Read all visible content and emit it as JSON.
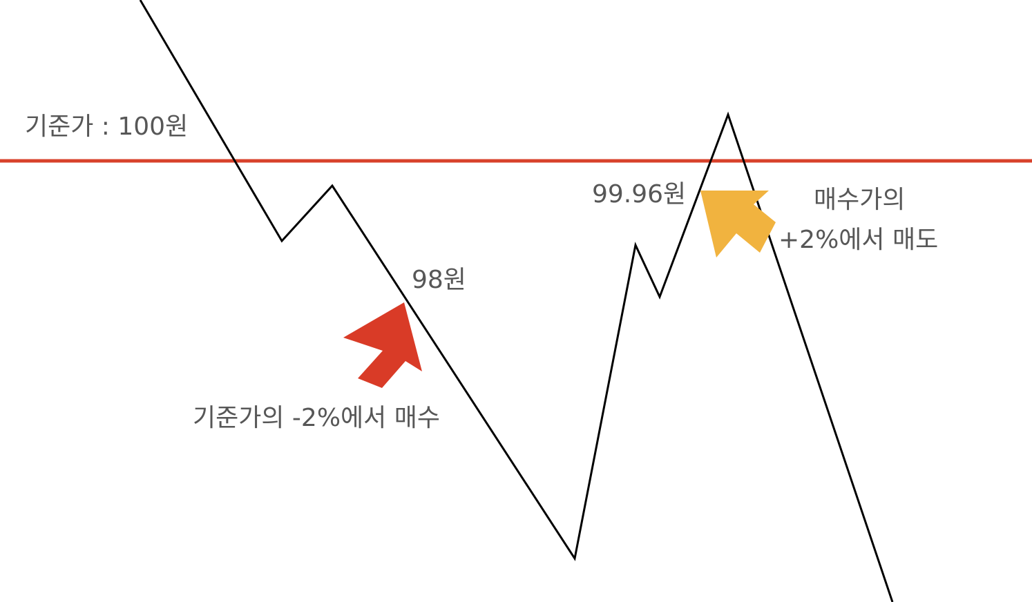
{
  "labels": {
    "base_price": "기준가 : 100원",
    "buy_price": "98원",
    "buy_rule": "기준가의 -2%에서 매수",
    "sell_price": "99.96원",
    "sell_rule_line1": "매수가의",
    "sell_rule_line2": "+2%에서 매도"
  },
  "colors": {
    "price_line": "#000000",
    "base_line": "#d8422b",
    "buy_arrow": "#d93b27",
    "sell_arrow": "#f1b33f",
    "label_text": "#575757"
  },
  "icons": {
    "buy_marker": "arrow-up-right-icon",
    "sell_marker": "arrow-up-left-icon"
  }
}
